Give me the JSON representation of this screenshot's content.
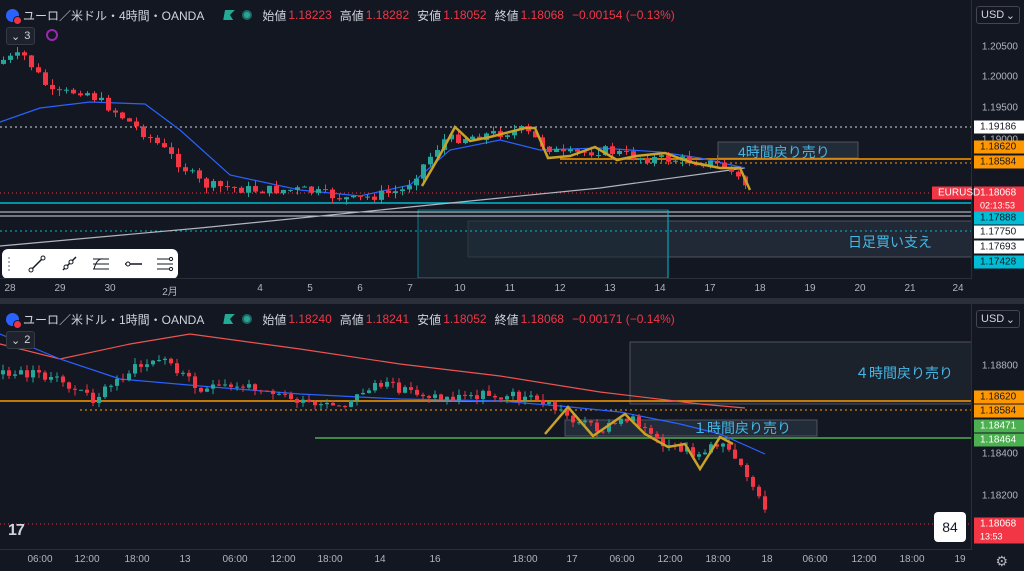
{
  "top": {
    "symbol": "ユーロ／米ドル・4時間・OANDA",
    "ohlc": [
      {
        "k": "始値",
        "v": "1.18223"
      },
      {
        "k": "高値",
        "v": "1.18282"
      },
      {
        "k": "安値",
        "v": "1.18052"
      },
      {
        "k": "終値",
        "v": "1.18068"
      }
    ],
    "change": "−0.00154 (−0.13%)",
    "indicator_count": "3",
    "currency": "USD",
    "price_ticks": [
      "1.20500",
      "1.20000",
      "1.19500",
      "1.19000"
    ],
    "price_labels": [
      {
        "text": "1.19186",
        "bg": "#ffffff",
        "fg": "#131722"
      },
      {
        "text": "1.18620",
        "bg": "#ff9800",
        "fg": "#131722"
      },
      {
        "text": "1.18584",
        "bg": "#ff9800",
        "fg": "#131722"
      },
      {
        "text": "EURUSD",
        "bg": "#f23645",
        "fg": "#ffffff"
      },
      {
        "text": "1.18068",
        "bg": "#f23645",
        "fg": "#ffffff"
      },
      {
        "text": "02:13:53",
        "bg": "#f23645",
        "fg": "#ffffff"
      },
      {
        "text": "1.17888",
        "bg": "#00bcd4",
        "fg": "#131722"
      },
      {
        "text": "1.17750",
        "bg": "#ffffff",
        "fg": "#131722"
      },
      {
        "text": "1.17693",
        "bg": "#ffffff",
        "fg": "#131722"
      },
      {
        "text": "1.17428",
        "bg": "#00bcd4",
        "fg": "#131722"
      }
    ],
    "time_ticks": [
      "28",
      "29",
      "30",
      "2月",
      "4",
      "5",
      "6",
      "7",
      "10",
      "11",
      "12",
      "13",
      "14",
      "17",
      "18",
      "19",
      "20",
      "21",
      "24"
    ],
    "zones": [
      {
        "label": "4時間戻り売り"
      },
      {
        "label": "日足買い支え"
      }
    ]
  },
  "bottom": {
    "symbol": "ユーロ／米ドル・1時間・OANDA",
    "ohlc": [
      {
        "k": "始値",
        "v": "1.18240"
      },
      {
        "k": "高値",
        "v": "1.18241"
      },
      {
        "k": "安値",
        "v": "1.18052"
      },
      {
        "k": "終値",
        "v": "1.18068"
      }
    ],
    "change": "−0.00171 (−0.14%)",
    "indicator_count": "2",
    "currency": "USD",
    "price_ticks": [
      "1.18800",
      "1.18400",
      "1.18200"
    ],
    "price_labels": [
      {
        "text": "1.18620",
        "bg": "#ff9800",
        "fg": "#131722"
      },
      {
        "text": "1.18584",
        "bg": "#ff9800",
        "fg": "#131722"
      },
      {
        "text": "1.18471",
        "bg": "#4caf50",
        "fg": "#ffffff"
      },
      {
        "text": "1.18464",
        "bg": "#4caf50",
        "fg": "#ffffff"
      },
      {
        "text": "1.18068",
        "bg": "#f23645",
        "fg": "#ffffff"
      },
      {
        "text": "13:53",
        "bg": "#f23645",
        "fg": "#ffffff"
      }
    ],
    "time_ticks": [
      "06:00",
      "12:00",
      "18:00",
      "13",
      "06:00",
      "12:00",
      "18:00",
      "14",
      "16",
      "18:00",
      "17",
      "06:00",
      "12:00",
      "18:00",
      "18",
      "06:00",
      "12:00",
      "18:00",
      "19"
    ],
    "zones": [
      {
        "label": "４時間戻り売り"
      },
      {
        "label": "１時間戻り売り"
      }
    ],
    "badge": "84"
  },
  "colors": {
    "bull": "#26a69a",
    "bear": "#f23645",
    "ma_fast": "#2962ff",
    "ma_slow": "#ef5350",
    "wave": "#c9a227",
    "bg": "#131722"
  },
  "tools": [
    "trend-line-icon",
    "ray-icon",
    "fib-icon",
    "horizontal-ray-icon",
    "parallel-lines-icon"
  ]
}
